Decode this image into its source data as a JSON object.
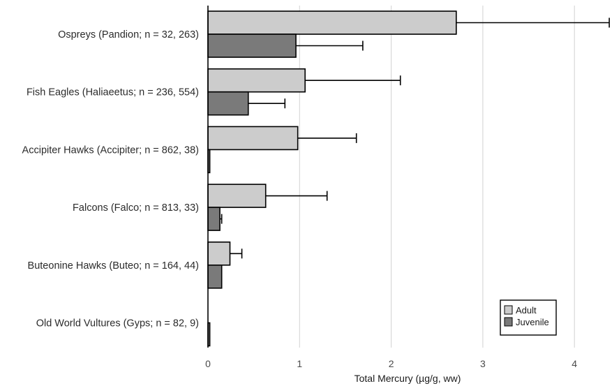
{
  "chart_data": {
    "type": "bar",
    "orientation": "horizontal",
    "categories": [
      "Ospreys (Pandion; n = 32, 263)",
      "Fish Eagles (Haliaeetus; n = 236, 554)",
      "Accipiter Hawks (Accipiter; n = 862, 38)",
      "Falcons (Falco; n = 813, 33)",
      "Buteonine Hawks (Buteo; n = 164, 44)",
      "Old World Vultures (Gyps; n = 82, 9)"
    ],
    "series": [
      {
        "name": "Adult",
        "color": "#cccccc",
        "values": [
          2.71,
          1.06,
          0.98,
          0.63,
          0.24,
          0.0
        ],
        "errors": [
          1.67,
          1.04,
          0.64,
          0.67,
          0.13,
          0.0
        ]
      },
      {
        "name": "Juvenile",
        "color": "#7a7a7a",
        "values": [
          0.96,
          0.44,
          0.02,
          0.13,
          0.15,
          0.02
        ],
        "errors": [
          0.73,
          0.4,
          0.0,
          0.02,
          0.0,
          0.0
        ]
      }
    ],
    "xlabel": "Total Mercury (µg/g, ww)",
    "xlim": [
      0,
      4.4
    ],
    "xticks": [
      0,
      1,
      2,
      3,
      4
    ],
    "grid": "vertical",
    "legend_position": "bottom-right"
  }
}
